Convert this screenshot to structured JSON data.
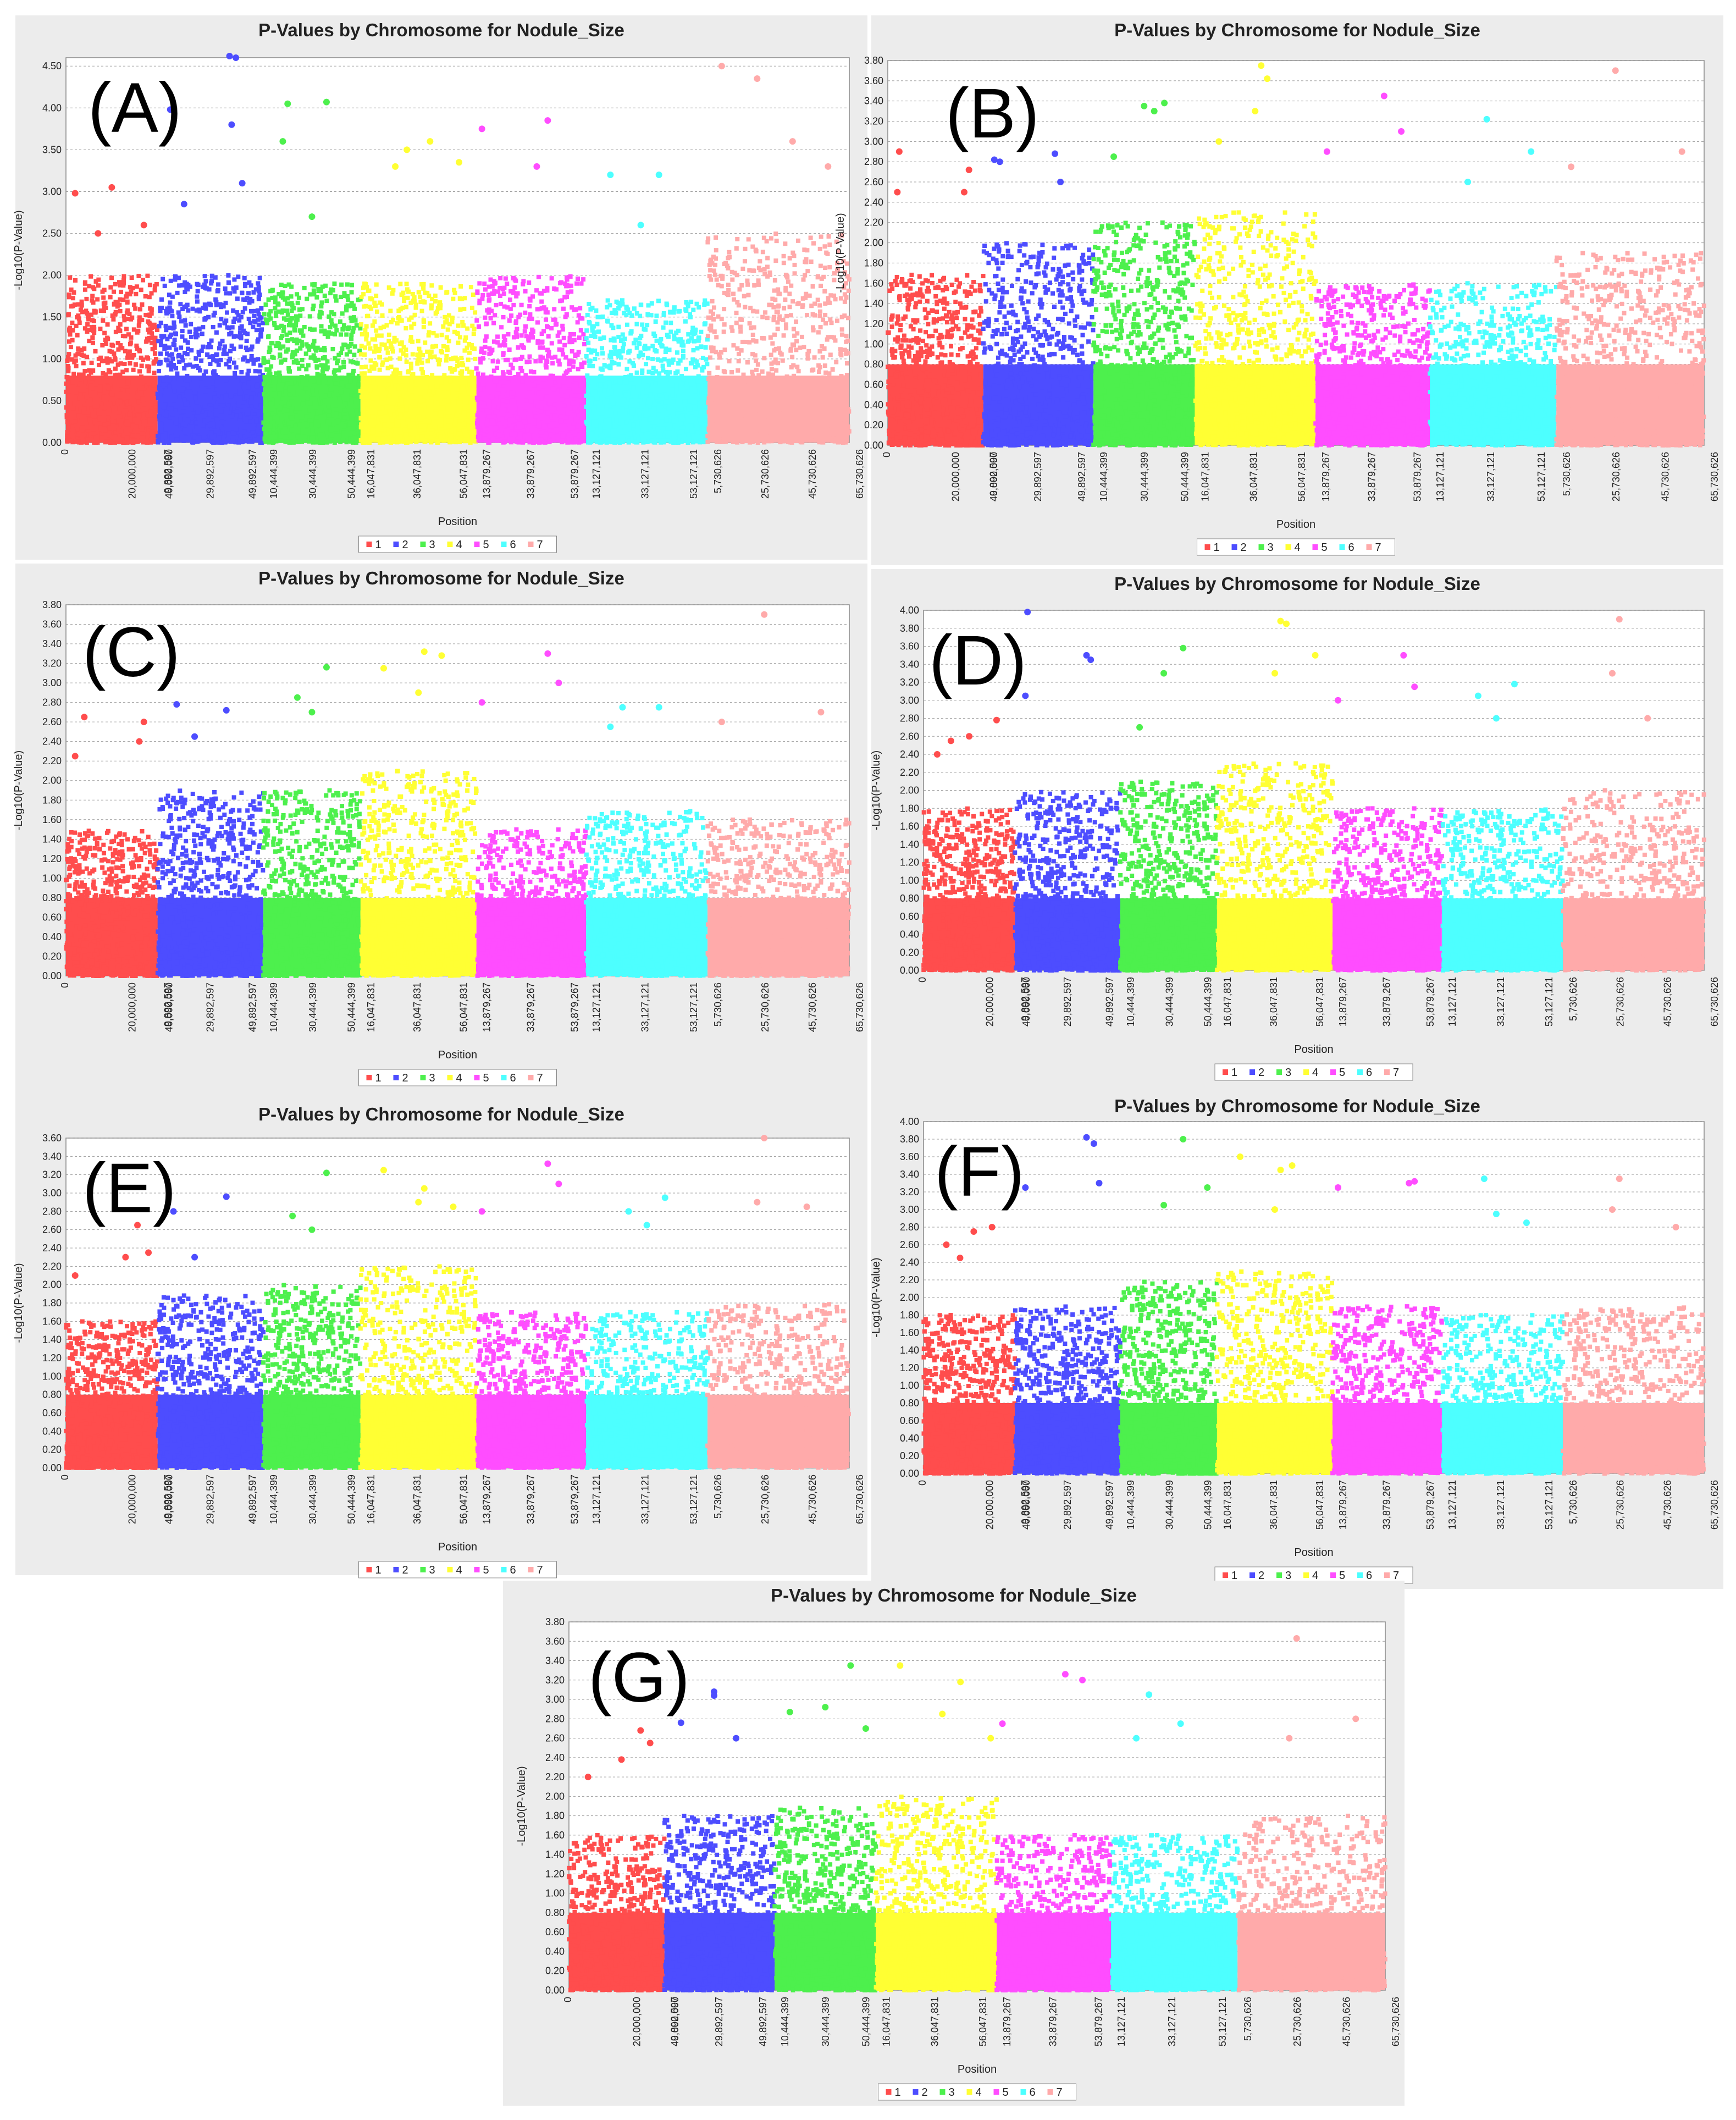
{
  "figure": {
    "chromosome_colors": [
      "#ff4d4d",
      "#4d4dff",
      "#4df04d",
      "#ffff33",
      "#ff4dff",
      "#4dffff",
      "#ffaaaa"
    ],
    "legend_labels": [
      "1",
      "2",
      "3",
      "4",
      "5",
      "6",
      "7"
    ],
    "x_tick_labels": [
      "0",
      "20,000,000",
      "40,000,000",
      "9,892,597",
      "29,892,597",
      "49,892,597",
      "10,444,399",
      "30,444,399",
      "50,444,399",
      "16,047,831",
      "36,047,831",
      "56,047,831",
      "13,879,267",
      "33,879,267",
      "53,879,267",
      "13,127,121",
      "33,127,121",
      "53,127,121",
      "5,730,626",
      "25,730,626",
      "45,730,626",
      "65,730,626"
    ]
  },
  "chart_data": [
    {
      "type": "scatter",
      "label": "(A)",
      "title": "P-Values by Chromosome for Nodule_Size",
      "xlabel": "Position",
      "ylabel": "-Log10(P-Value)",
      "ylim": [
        0,
        4.6
      ],
      "ytick_step": 0.5,
      "ytick_decimals": 2,
      "grid": true,
      "legend": "bottom-center",
      "categories": [
        "1",
        "2",
        "3",
        "4",
        "5",
        "6",
        "7"
      ],
      "typical_band_max": [
        2.0,
        2.0,
        1.9,
        1.9,
        2.0,
        1.7,
        2.5
      ],
      "peak_points": [
        {
          "chrom": 1,
          "pos": 0.1,
          "y": 2.98
        },
        {
          "chrom": 1,
          "pos": 0.35,
          "y": 2.5
        },
        {
          "chrom": 1,
          "pos": 0.5,
          "y": 3.05
        },
        {
          "chrom": 1,
          "pos": 0.85,
          "y": 2.6
        },
        {
          "chrom": 2,
          "pos": 0.12,
          "y": 3.98
        },
        {
          "chrom": 2,
          "pos": 0.25,
          "y": 2.85
        },
        {
          "chrom": 2,
          "pos": 0.68,
          "y": 4.62
        },
        {
          "chrom": 2,
          "pos": 0.74,
          "y": 4.6
        },
        {
          "chrom": 2,
          "pos": 0.7,
          "y": 3.8
        },
        {
          "chrom": 2,
          "pos": 0.8,
          "y": 3.1
        },
        {
          "chrom": 3,
          "pos": 0.25,
          "y": 4.05
        },
        {
          "chrom": 3,
          "pos": 0.2,
          "y": 3.6
        },
        {
          "chrom": 3,
          "pos": 0.65,
          "y": 4.07
        },
        {
          "chrom": 3,
          "pos": 0.5,
          "y": 2.7
        },
        {
          "chrom": 4,
          "pos": 0.4,
          "y": 3.5
        },
        {
          "chrom": 4,
          "pos": 0.6,
          "y": 3.6
        },
        {
          "chrom": 4,
          "pos": 0.3,
          "y": 3.3
        },
        {
          "chrom": 4,
          "pos": 0.85,
          "y": 3.35
        },
        {
          "chrom": 5,
          "pos": 0.05,
          "y": 3.75
        },
        {
          "chrom": 5,
          "pos": 0.65,
          "y": 3.85
        },
        {
          "chrom": 5,
          "pos": 0.55,
          "y": 3.3
        },
        {
          "chrom": 6,
          "pos": 0.2,
          "y": 3.2
        },
        {
          "chrom": 6,
          "pos": 0.6,
          "y": 3.2
        },
        {
          "chrom": 6,
          "pos": 0.45,
          "y": 2.6
        },
        {
          "chrom": 7,
          "pos": 0.1,
          "y": 4.5
        },
        {
          "chrom": 7,
          "pos": 0.35,
          "y": 4.35
        },
        {
          "chrom": 7,
          "pos": 0.6,
          "y": 3.6
        },
        {
          "chrom": 7,
          "pos": 0.85,
          "y": 3.3
        }
      ]
    },
    {
      "type": "scatter",
      "label": "(B)",
      "title": "P-Values by Chromosome for Nodule_Size",
      "xlabel": "Position",
      "ylabel": "-Log10(P-Value)",
      "ylim": [
        0,
        3.8
      ],
      "ytick_step": 0.2,
      "ytick_decimals": 2,
      "grid": true,
      "legend": "bottom-center",
      "categories": [
        "1",
        "2",
        "3",
        "4",
        "5",
        "6",
        "7"
      ],
      "typical_band_max": [
        1.7,
        2.0,
        2.2,
        2.3,
        1.6,
        1.6,
        1.9
      ],
      "peak_points": [
        {
          "chrom": 1,
          "pos": 0.12,
          "y": 2.9
        },
        {
          "chrom": 1,
          "pos": 0.1,
          "y": 2.5
        },
        {
          "chrom": 1,
          "pos": 0.85,
          "y": 2.72
        },
        {
          "chrom": 1,
          "pos": 0.8,
          "y": 2.5
        },
        {
          "chrom": 2,
          "pos": 0.1,
          "y": 2.82
        },
        {
          "chrom": 2,
          "pos": 0.15,
          "y": 2.8
        },
        {
          "chrom": 2,
          "pos": 0.65,
          "y": 2.88
        },
        {
          "chrom": 2,
          "pos": 0.7,
          "y": 2.6
        },
        {
          "chrom": 3,
          "pos": 0.5,
          "y": 3.35
        },
        {
          "chrom": 3,
          "pos": 0.7,
          "y": 3.38
        },
        {
          "chrom": 3,
          "pos": 0.6,
          "y": 3.3
        },
        {
          "chrom": 3,
          "pos": 0.2,
          "y": 2.85
        },
        {
          "chrom": 4,
          "pos": 0.55,
          "y": 3.75
        },
        {
          "chrom": 4,
          "pos": 0.6,
          "y": 3.62
        },
        {
          "chrom": 4,
          "pos": 0.5,
          "y": 3.3
        },
        {
          "chrom": 4,
          "pos": 0.2,
          "y": 3.0
        },
        {
          "chrom": 5,
          "pos": 0.1,
          "y": 2.9
        },
        {
          "chrom": 5,
          "pos": 0.6,
          "y": 3.45
        },
        {
          "chrom": 5,
          "pos": 0.75,
          "y": 3.1
        },
        {
          "chrom": 6,
          "pos": 0.45,
          "y": 3.22
        },
        {
          "chrom": 6,
          "pos": 0.8,
          "y": 2.9
        },
        {
          "chrom": 6,
          "pos": 0.3,
          "y": 2.6
        },
        {
          "chrom": 7,
          "pos": 0.4,
          "y": 3.7
        },
        {
          "chrom": 7,
          "pos": 0.85,
          "y": 2.9
        },
        {
          "chrom": 7,
          "pos": 0.1,
          "y": 2.75
        }
      ]
    },
    {
      "type": "scatter",
      "label": "(C)",
      "title": "P-Values by Chromosome for Nodule_Size",
      "xlabel": "Position",
      "ylabel": "-Log10(P-Value)",
      "ylim": [
        0,
        3.8
      ],
      "ytick_step": 0.2,
      "ytick_decimals": 2,
      "grid": true,
      "legend": "bottom-center",
      "categories": [
        "1",
        "2",
        "3",
        "4",
        "5",
        "6",
        "7"
      ],
      "typical_band_max": [
        1.5,
        1.9,
        1.9,
        2.1,
        1.5,
        1.7,
        1.6
      ],
      "peak_points": [
        {
          "chrom": 1,
          "pos": 0.2,
          "y": 2.65
        },
        {
          "chrom": 1,
          "pos": 0.1,
          "y": 2.25
        },
        {
          "chrom": 1,
          "pos": 0.85,
          "y": 2.6
        },
        {
          "chrom": 1,
          "pos": 0.8,
          "y": 2.4
        },
        {
          "chrom": 2,
          "pos": 0.18,
          "y": 2.78
        },
        {
          "chrom": 2,
          "pos": 0.65,
          "y": 2.72
        },
        {
          "chrom": 2,
          "pos": 0.35,
          "y": 2.45
        },
        {
          "chrom": 3,
          "pos": 0.35,
          "y": 2.85
        },
        {
          "chrom": 3,
          "pos": 0.65,
          "y": 3.16
        },
        {
          "chrom": 3,
          "pos": 0.5,
          "y": 2.7
        },
        {
          "chrom": 4,
          "pos": 0.2,
          "y": 3.15
        },
        {
          "chrom": 4,
          "pos": 0.55,
          "y": 3.32
        },
        {
          "chrom": 4,
          "pos": 0.7,
          "y": 3.28
        },
        {
          "chrom": 4,
          "pos": 0.5,
          "y": 2.9
        },
        {
          "chrom": 5,
          "pos": 0.05,
          "y": 2.8
        },
        {
          "chrom": 5,
          "pos": 0.65,
          "y": 3.3
        },
        {
          "chrom": 5,
          "pos": 0.75,
          "y": 3.0
        },
        {
          "chrom": 6,
          "pos": 0.3,
          "y": 2.75
        },
        {
          "chrom": 6,
          "pos": 0.6,
          "y": 2.75
        },
        {
          "chrom": 6,
          "pos": 0.2,
          "y": 2.55
        },
        {
          "chrom": 7,
          "pos": 0.4,
          "y": 3.7
        },
        {
          "chrom": 7,
          "pos": 0.1,
          "y": 2.6
        },
        {
          "chrom": 7,
          "pos": 0.8,
          "y": 2.7
        }
      ]
    },
    {
      "type": "scatter",
      "label": "(D)",
      "title": "P-Values by Chromosome for Nodule_Size",
      "xlabel": "Position",
      "ylabel": "-Log10(P-Value)",
      "ylim": [
        0,
        4.0
      ],
      "ytick_step": 0.2,
      "ytick_decimals": 2,
      "grid": true,
      "legend": "bottom-center",
      "categories": [
        "1",
        "2",
        "3",
        "4",
        "5",
        "6",
        "7"
      ],
      "typical_band_max": [
        1.8,
        2.0,
        2.1,
        2.3,
        1.8,
        1.8,
        2.0
      ],
      "peak_points": [
        {
          "chrom": 1,
          "pos": 0.3,
          "y": 2.55
        },
        {
          "chrom": 1,
          "pos": 0.5,
          "y": 2.6
        },
        {
          "chrom": 1,
          "pos": 0.8,
          "y": 2.78
        },
        {
          "chrom": 1,
          "pos": 0.15,
          "y": 2.4
        },
        {
          "chrom": 2,
          "pos": 0.12,
          "y": 3.98
        },
        {
          "chrom": 2,
          "pos": 0.1,
          "y": 3.05
        },
        {
          "chrom": 2,
          "pos": 0.68,
          "y": 3.5
        },
        {
          "chrom": 2,
          "pos": 0.72,
          "y": 3.45
        },
        {
          "chrom": 3,
          "pos": 0.45,
          "y": 3.3
        },
        {
          "chrom": 3,
          "pos": 0.65,
          "y": 3.58
        },
        {
          "chrom": 3,
          "pos": 0.2,
          "y": 2.7
        },
        {
          "chrom": 4,
          "pos": 0.55,
          "y": 3.88
        },
        {
          "chrom": 4,
          "pos": 0.6,
          "y": 3.85
        },
        {
          "chrom": 4,
          "pos": 0.5,
          "y": 3.3
        },
        {
          "chrom": 4,
          "pos": 0.85,
          "y": 3.5
        },
        {
          "chrom": 5,
          "pos": 0.05,
          "y": 3.0
        },
        {
          "chrom": 5,
          "pos": 0.65,
          "y": 3.5
        },
        {
          "chrom": 5,
          "pos": 0.75,
          "y": 3.15
        },
        {
          "chrom": 6,
          "pos": 0.3,
          "y": 3.05
        },
        {
          "chrom": 6,
          "pos": 0.6,
          "y": 3.18
        },
        {
          "chrom": 6,
          "pos": 0.45,
          "y": 2.8
        },
        {
          "chrom": 7,
          "pos": 0.4,
          "y": 3.9
        },
        {
          "chrom": 7,
          "pos": 0.35,
          "y": 3.3
        },
        {
          "chrom": 7,
          "pos": 0.6,
          "y": 2.8
        }
      ]
    },
    {
      "type": "scatter",
      "label": "(E)",
      "title": "P-Values by Chromosome for Nodule_Size",
      "xlabel": "Position",
      "ylabel": "-Log10(P-Value)",
      "ylim": [
        0,
        3.6
      ],
      "ytick_step": 0.2,
      "ytick_decimals": 2,
      "grid": true,
      "legend": "bottom-center",
      "categories": [
        "1",
        "2",
        "3",
        "4",
        "5",
        "6",
        "7"
      ],
      "typical_band_max": [
        1.6,
        1.9,
        2.0,
        2.2,
        1.7,
        1.7,
        1.8
      ],
      "peak_points": [
        {
          "chrom": 1,
          "pos": 0.1,
          "y": 2.1
        },
        {
          "chrom": 1,
          "pos": 0.65,
          "y": 2.3
        },
        {
          "chrom": 1,
          "pos": 0.78,
          "y": 2.65
        },
        {
          "chrom": 1,
          "pos": 0.9,
          "y": 2.35
        },
        {
          "chrom": 2,
          "pos": 0.15,
          "y": 2.8
        },
        {
          "chrom": 2,
          "pos": 0.65,
          "y": 2.96
        },
        {
          "chrom": 2,
          "pos": 0.35,
          "y": 2.3
        },
        {
          "chrom": 3,
          "pos": 0.3,
          "y": 2.75
        },
        {
          "chrom": 3,
          "pos": 0.65,
          "y": 3.22
        },
        {
          "chrom": 3,
          "pos": 0.5,
          "y": 2.6
        },
        {
          "chrom": 4,
          "pos": 0.2,
          "y": 3.25
        },
        {
          "chrom": 4,
          "pos": 0.55,
          "y": 3.05
        },
        {
          "chrom": 4,
          "pos": 0.5,
          "y": 2.9
        },
        {
          "chrom": 4,
          "pos": 0.8,
          "y": 2.85
        },
        {
          "chrom": 5,
          "pos": 0.05,
          "y": 2.8
        },
        {
          "chrom": 5,
          "pos": 0.65,
          "y": 3.32
        },
        {
          "chrom": 5,
          "pos": 0.75,
          "y": 3.1
        },
        {
          "chrom": 6,
          "pos": 0.35,
          "y": 2.8
        },
        {
          "chrom": 6,
          "pos": 0.65,
          "y": 2.95
        },
        {
          "chrom": 6,
          "pos": 0.5,
          "y": 2.65
        },
        {
          "chrom": 7,
          "pos": 0.4,
          "y": 3.6
        },
        {
          "chrom": 7,
          "pos": 0.35,
          "y": 2.9
        },
        {
          "chrom": 7,
          "pos": 0.7,
          "y": 2.85
        }
      ]
    },
    {
      "type": "scatter",
      "label": "(F)",
      "title": "P-Values by Chromosome for Nodule_Size",
      "xlabel": "Position",
      "ylabel": "-Log10(P-Value)",
      "ylim": [
        0,
        4.0
      ],
      "ytick_step": 0.2,
      "ytick_decimals": 2,
      "grid": true,
      "legend": "bottom-center",
      "categories": [
        "1",
        "2",
        "3",
        "4",
        "5",
        "6",
        "7"
      ],
      "typical_band_max": [
        1.8,
        1.9,
        2.2,
        2.3,
        1.9,
        1.8,
        1.9
      ],
      "peak_points": [
        {
          "chrom": 1,
          "pos": 0.25,
          "y": 2.6
        },
        {
          "chrom": 1,
          "pos": 0.55,
          "y": 2.75
        },
        {
          "chrom": 1,
          "pos": 0.75,
          "y": 2.8
        },
        {
          "chrom": 1,
          "pos": 0.4,
          "y": 2.45
        },
        {
          "chrom": 2,
          "pos": 0.1,
          "y": 3.25
        },
        {
          "chrom": 2,
          "pos": 0.68,
          "y": 3.82
        },
        {
          "chrom": 2,
          "pos": 0.75,
          "y": 3.75
        },
        {
          "chrom": 2,
          "pos": 0.8,
          "y": 3.3
        },
        {
          "chrom": 3,
          "pos": 0.45,
          "y": 3.05
        },
        {
          "chrom": 3,
          "pos": 0.65,
          "y": 3.8
        },
        {
          "chrom": 3,
          "pos": 0.9,
          "y": 3.25
        },
        {
          "chrom": 4,
          "pos": 0.2,
          "y": 3.6
        },
        {
          "chrom": 4,
          "pos": 0.55,
          "y": 3.45
        },
        {
          "chrom": 4,
          "pos": 0.65,
          "y": 3.5
        },
        {
          "chrom": 4,
          "pos": 0.5,
          "y": 3.0
        },
        {
          "chrom": 5,
          "pos": 0.05,
          "y": 3.25
        },
        {
          "chrom": 5,
          "pos": 0.7,
          "y": 3.3
        },
        {
          "chrom": 5,
          "pos": 0.75,
          "y": 3.32
        },
        {
          "chrom": 6,
          "pos": 0.35,
          "y": 3.35
        },
        {
          "chrom": 6,
          "pos": 0.45,
          "y": 2.95
        },
        {
          "chrom": 6,
          "pos": 0.7,
          "y": 2.85
        },
        {
          "chrom": 7,
          "pos": 0.4,
          "y": 3.35
        },
        {
          "chrom": 7,
          "pos": 0.35,
          "y": 3.0
        },
        {
          "chrom": 7,
          "pos": 0.8,
          "y": 2.8
        }
      ]
    },
    {
      "type": "scatter",
      "label": "(G)",
      "title": "P-Values by Chromosome for Nodule_Size",
      "xlabel": "Position",
      "ylabel": "-Log10(P-Value)",
      "ylim": [
        0,
        3.8
      ],
      "ytick_step": 0.2,
      "ytick_decimals": 2,
      "grid": true,
      "legend": "bottom-center",
      "categories": [
        "1",
        "2",
        "3",
        "4",
        "5",
        "6",
        "7"
      ],
      "typical_band_max": [
        1.6,
        1.8,
        1.9,
        2.0,
        1.6,
        1.6,
        1.8
      ],
      "peak_points": [
        {
          "chrom": 1,
          "pos": 0.2,
          "y": 2.2
        },
        {
          "chrom": 1,
          "pos": 0.55,
          "y": 2.38
        },
        {
          "chrom": 1,
          "pos": 0.75,
          "y": 2.68
        },
        {
          "chrom": 1,
          "pos": 0.85,
          "y": 2.55
        },
        {
          "chrom": 2,
          "pos": 0.15,
          "y": 2.76
        },
        {
          "chrom": 2,
          "pos": 0.45,
          "y": 3.08
        },
        {
          "chrom": 2,
          "pos": 0.45,
          "y": 3.04
        },
        {
          "chrom": 2,
          "pos": 0.65,
          "y": 2.6
        },
        {
          "chrom": 3,
          "pos": 0.15,
          "y": 2.87
        },
        {
          "chrom": 3,
          "pos": 0.5,
          "y": 2.92
        },
        {
          "chrom": 3,
          "pos": 0.75,
          "y": 3.35
        },
        {
          "chrom": 3,
          "pos": 0.9,
          "y": 2.7
        },
        {
          "chrom": 4,
          "pos": 0.2,
          "y": 3.35
        },
        {
          "chrom": 4,
          "pos": 0.55,
          "y": 2.85
        },
        {
          "chrom": 4,
          "pos": 0.7,
          "y": 3.18
        },
        {
          "chrom": 4,
          "pos": 0.95,
          "y": 2.6
        },
        {
          "chrom": 5,
          "pos": 0.05,
          "y": 2.75
        },
        {
          "chrom": 5,
          "pos": 0.6,
          "y": 3.26
        },
        {
          "chrom": 5,
          "pos": 0.75,
          "y": 3.2
        },
        {
          "chrom": 6,
          "pos": 0.3,
          "y": 3.05
        },
        {
          "chrom": 6,
          "pos": 0.55,
          "y": 2.75
        },
        {
          "chrom": 6,
          "pos": 0.2,
          "y": 2.6
        },
        {
          "chrom": 7,
          "pos": 0.4,
          "y": 3.63
        },
        {
          "chrom": 7,
          "pos": 0.35,
          "y": 2.6
        },
        {
          "chrom": 7,
          "pos": 0.8,
          "y": 2.8
        }
      ]
    }
  ]
}
